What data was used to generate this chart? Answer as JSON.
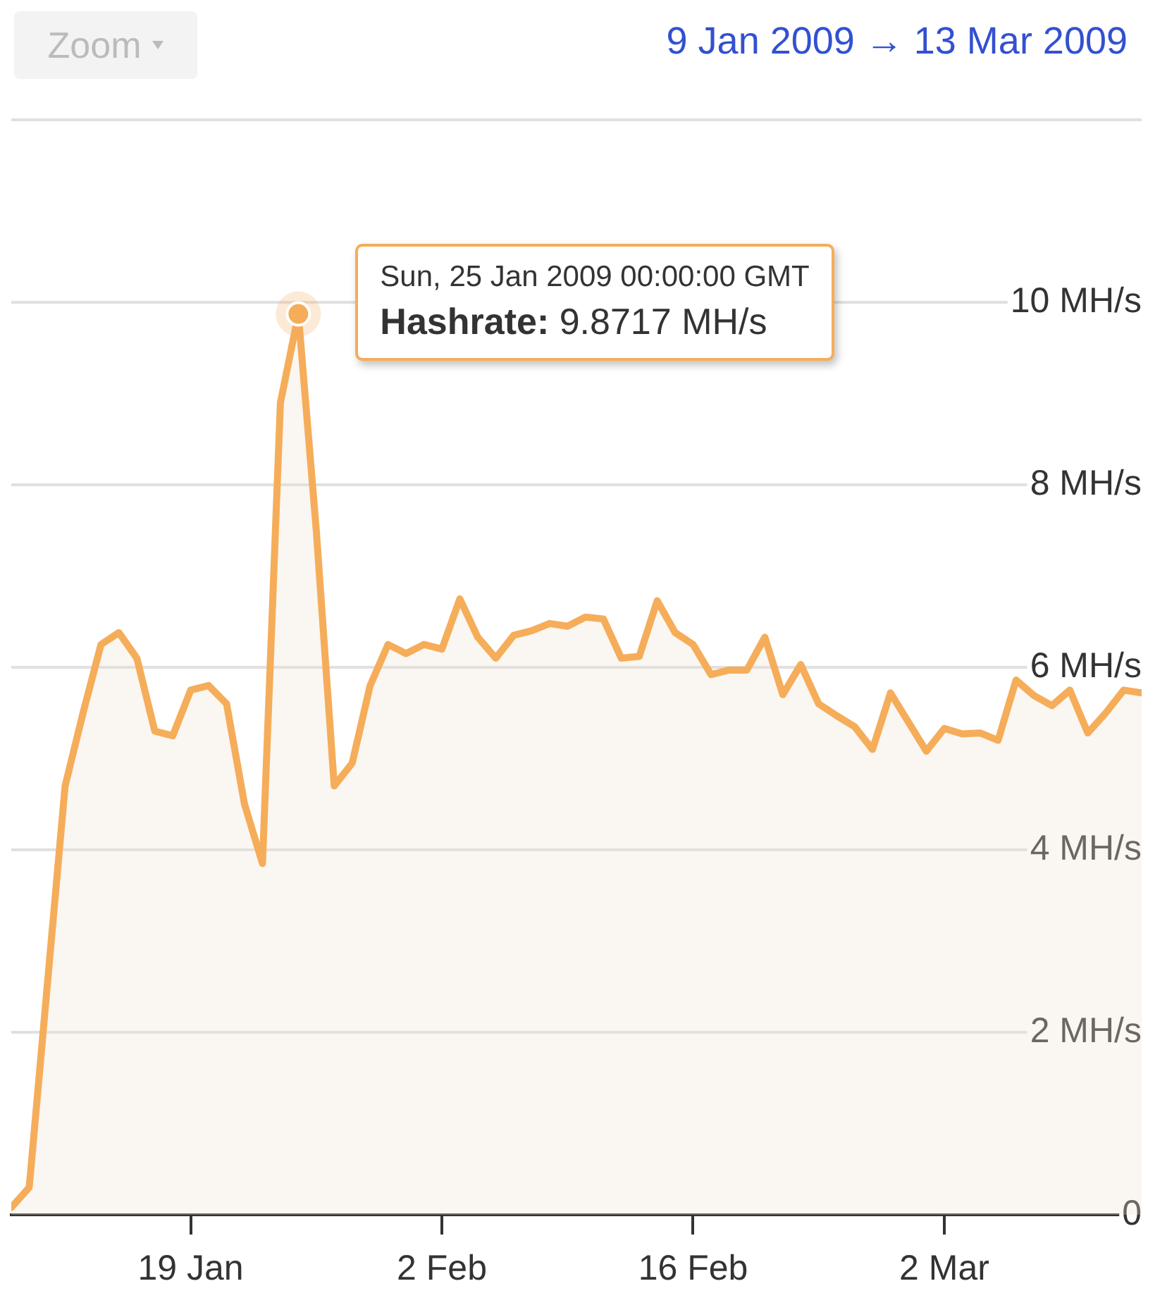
{
  "chart_data": {
    "type": "area",
    "subtitle": "9 Jan 2009 → 13 Mar 2009",
    "x": [
      "2009-01-09",
      "2009-01-10",
      "2009-01-11",
      "2009-01-12",
      "2009-01-13",
      "2009-01-14",
      "2009-01-15",
      "2009-01-16",
      "2009-01-17",
      "2009-01-18",
      "2009-01-19",
      "2009-01-20",
      "2009-01-21",
      "2009-01-22",
      "2009-01-23",
      "2009-01-24",
      "2009-01-25",
      "2009-01-26",
      "2009-01-27",
      "2009-01-28",
      "2009-01-29",
      "2009-01-30",
      "2009-01-31",
      "2009-02-01",
      "2009-02-02",
      "2009-02-03",
      "2009-02-04",
      "2009-02-05",
      "2009-02-06",
      "2009-02-07",
      "2009-02-08",
      "2009-02-09",
      "2009-02-10",
      "2009-02-11",
      "2009-02-12",
      "2009-02-13",
      "2009-02-14",
      "2009-02-15",
      "2009-02-16",
      "2009-02-17",
      "2009-02-18",
      "2009-02-19",
      "2009-02-20",
      "2009-02-21",
      "2009-02-22",
      "2009-02-23",
      "2009-02-24",
      "2009-02-25",
      "2009-02-26",
      "2009-02-27",
      "2009-02-28",
      "2009-03-01",
      "2009-03-02",
      "2009-03-03",
      "2009-03-04",
      "2009-03-05",
      "2009-03-06",
      "2009-03-07",
      "2009-03-08",
      "2009-03-09",
      "2009-03-10",
      "2009-03-11",
      "2009-03-12",
      "2009-03-13"
    ],
    "series": [
      {
        "color": "#f5ad5a",
        "values": [
          0.08,
          0.3,
          2.5,
          4.7,
          5.5,
          6.25,
          6.38,
          6.1,
          5.3,
          5.25,
          5.75,
          5.8,
          5.6,
          4.5,
          3.85,
          8.9,
          9.87,
          7.5,
          4.7,
          4.95,
          5.8,
          6.25,
          6.15,
          6.25,
          6.2,
          6.75,
          6.33,
          6.1,
          6.35,
          6.4,
          6.48,
          6.45,
          6.55,
          6.53,
          6.1,
          6.12,
          6.73,
          6.38,
          6.25,
          5.92,
          5.97,
          5.97,
          6.33,
          5.7,
          6.03,
          5.6,
          5.47,
          5.35,
          5.1,
          5.72,
          5.4,
          5.08,
          5.33,
          5.27,
          5.28,
          5.2,
          5.86,
          5.69,
          5.58,
          5.75,
          5.28,
          5.5,
          5.75,
          5.72
        ]
      }
    ],
    "xlim": [
      "2009-01-09",
      "2009-03-13"
    ],
    "xticks": [
      {
        "value": "2009-01-19",
        "label": "19 Jan"
      },
      {
        "value": "2009-02-02",
        "label": "2 Feb"
      },
      {
        "value": "2009-02-16",
        "label": "16 Feb"
      },
      {
        "value": "2009-03-02",
        "label": "2 Mar"
      }
    ],
    "ylim": [
      0,
      12
    ],
    "yticks": [
      0,
      {
        "value": 2,
        "label": "2 MH/s"
      },
      {
        "value": 4,
        "label": "4 MH/s"
      },
      {
        "value": 6,
        "label": "6 MH/s"
      },
      {
        "value": 8,
        "label": "8 MH/s"
      },
      {
        "value": 10,
        "label": "10 MH/s"
      },
      {
        "value": 12,
        "label": null
      }
    ],
    "grid": "y",
    "annotations": [
      "Zoom",
      {
        "text": "Sun, 25 Jan 2009 00:00:00 GMT",
        "x": "2009-01-25",
        "y": 9.8717
      },
      {
        "text": "Hashrate: 9.8717 MH/s",
        "x": "2009-01-25",
        "y": 9.8717
      }
    ]
  }
}
